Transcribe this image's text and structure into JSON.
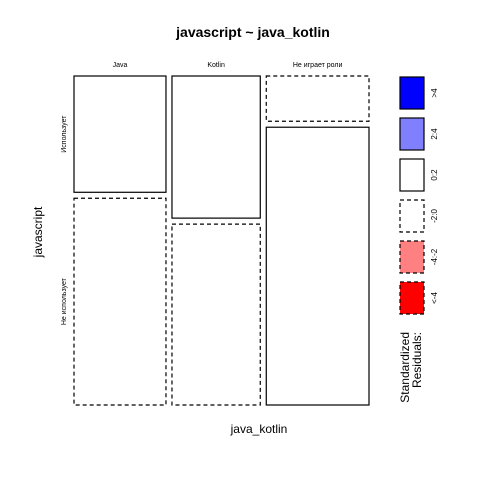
{
  "chart_data": {
    "type": "mosaic",
    "title": "javascript ~ java_kotlin",
    "xlabel": "java_kotlin",
    "ylabel": "javascript",
    "x_levels": [
      "Java",
      "Kotlin",
      "Не играет роли"
    ],
    "y_levels": [
      "Использует",
      "Не использует"
    ],
    "column_proportions": [
      0.325,
      0.312,
      0.363
    ],
    "cells": [
      {
        "x": "Java",
        "y": "Использует",
        "proportion_within_column": 0.36,
        "residual_class": "0:2"
      },
      {
        "x": "Java",
        "y": "Не использует",
        "proportion_within_column": 0.64,
        "residual_class": "-2:0"
      },
      {
        "x": "Kotlin",
        "y": "Использует",
        "proportion_within_column": 0.44,
        "residual_class": "0:2"
      },
      {
        "x": "Kotlin",
        "y": "Не использует",
        "proportion_within_column": 0.56,
        "residual_class": "-2:0"
      },
      {
        "x": "Не играет роли",
        "y": "Использует",
        "proportion_within_column": 0.14,
        "residual_class": "-2:0"
      },
      {
        "x": "Не играет роли",
        "y": "Не использует",
        "proportion_within_column": 0.86,
        "residual_class": "0:2"
      }
    ],
    "legend": {
      "title_lines": [
        "Standardized",
        "Residuals:"
      ],
      "placement": "right",
      "entries": [
        {
          "label": ">4",
          "color": "#0000ff",
          "style": "solid"
        },
        {
          "label": "2:4",
          "color": "#8080ff",
          "style": "solid"
        },
        {
          "label": "0:2",
          "color": "#ffffff",
          "style": "solid"
        },
        {
          "label": "-2:0",
          "color": "#ffffff",
          "style": "dashed"
        },
        {
          "label": "-4:-2",
          "color": "#ff8080",
          "style": "dashed"
        },
        {
          "label": "<-4",
          "color": "#ff0000",
          "style": "dashed"
        }
      ]
    }
  }
}
